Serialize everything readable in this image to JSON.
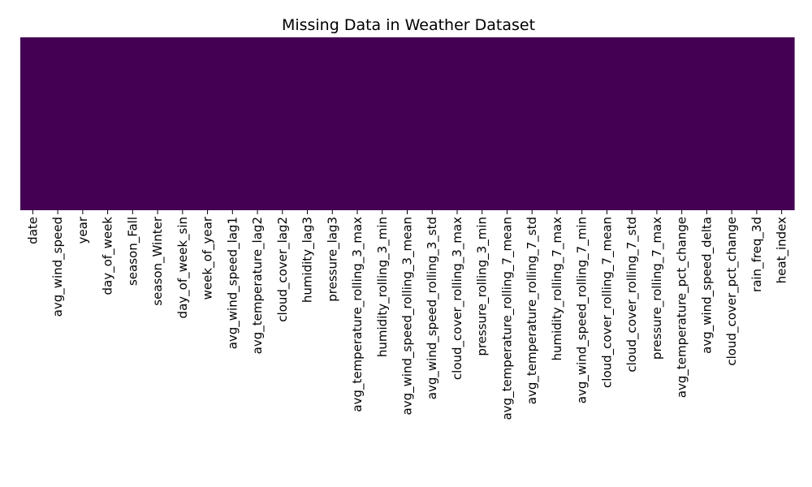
{
  "chart_data": {
    "type": "heatmap",
    "title": "Missing Data in Weather Dataset",
    "xlabel": "",
    "ylabel": "",
    "columns": [
      "date",
      "avg_wind_speed",
      "year",
      "day_of_week",
      "season_Fall",
      "season_Winter",
      "day_of_week_sin",
      "week_of_year",
      "avg_wind_speed_lag1",
      "avg_temperature_lag2",
      "cloud_cover_lag2",
      "humidity_lag3",
      "pressure_lag3",
      "avg_temperature_rolling_3_max",
      "humidity_rolling_3_min",
      "avg_wind_speed_rolling_3_mean",
      "avg_wind_speed_rolling_3_std",
      "cloud_cover_rolling_3_max",
      "pressure_rolling_3_min",
      "avg_temperature_rolling_7_mean",
      "avg_temperature_rolling_7_std",
      "humidity_rolling_7_max",
      "avg_wind_speed_rolling_7_min",
      "cloud_cover_rolling_7_mean",
      "cloud_cover_rolling_7_std",
      "pressure_rolling_7_max",
      "avg_temperature_pct_change",
      "avg_wind_speed_delta",
      "cloud_cover_pct_change",
      "rain_freq_3d",
      "heat_index"
    ],
    "missing_fraction": [
      0,
      0,
      0,
      0,
      0,
      0,
      0,
      0,
      0,
      0,
      0,
      0,
      0,
      0,
      0,
      0,
      0,
      0,
      0,
      0,
      0,
      0,
      0,
      0,
      0,
      0,
      0,
      0,
      0,
      0,
      0
    ],
    "colors": {
      "present": "#440154",
      "missing": "#fde725"
    },
    "colorbar": false,
    "y_ticks": false
  }
}
